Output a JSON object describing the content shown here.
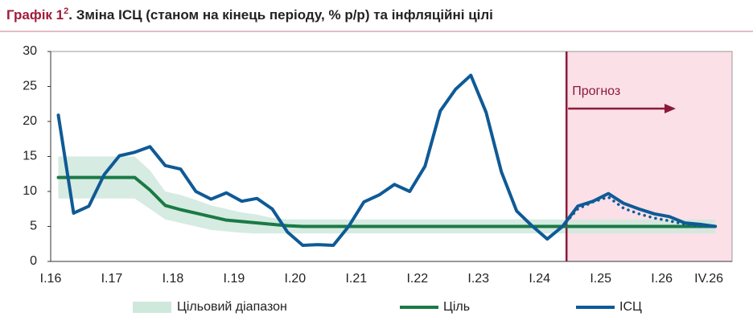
{
  "chart_data": {
    "type": "line",
    "title_label": "Графік 1",
    "title_footnote": "2",
    "title": ". Зміна ІСЦ (станом на кінець періоду, % р/р) та інфляційні цілі",
    "annotation": "Прогноз",
    "categories": [
      "I.16",
      null,
      null,
      null,
      "I.17",
      null,
      null,
      null,
      "I.18",
      null,
      null,
      null,
      "I.19",
      null,
      null,
      null,
      "I.20",
      null,
      null,
      null,
      "I.21",
      null,
      null,
      null,
      "I.22",
      null,
      null,
      null,
      "I.23",
      null,
      null,
      null,
      "I.24",
      null,
      null,
      null,
      "I.25",
      null,
      null,
      null,
      "I.26",
      null,
      null,
      "IV.26"
    ],
    "ylim": [
      0,
      30
    ],
    "yticks": [
      0,
      5,
      10,
      15,
      20,
      25,
      30
    ],
    "grid": false,
    "legend": "bottom",
    "band": {
      "name": "Цільовий діапазон",
      "color": "#cfe8dc",
      "upper": [
        15,
        15,
        15,
        15,
        15,
        15,
        13,
        10,
        9.5,
        8.8,
        8,
        7.5,
        7,
        6.7,
        6.2,
        6,
        6,
        6,
        6,
        6,
        6,
        6,
        6,
        6,
        6,
        6,
        6,
        6,
        6,
        6,
        6,
        6,
        6,
        6,
        6,
        6,
        6,
        6,
        6,
        6,
        6,
        6,
        6,
        6
      ],
      "lower": [
        9,
        9,
        9,
        9,
        9,
        9,
        7.5,
        6,
        5.5,
        5,
        4.5,
        4.3,
        4.1,
        4,
        4,
        4,
        4,
        4,
        4,
        4,
        4,
        4,
        4,
        4,
        4,
        4,
        4,
        4,
        4,
        4,
        4,
        4,
        4,
        4,
        4,
        4,
        4,
        4,
        4,
        4,
        4,
        4,
        4,
        4
      ]
    },
    "series": [
      {
        "name": "Ціль",
        "color": "#1a7a45",
        "style": "solid",
        "values": [
          12,
          12,
          12,
          12,
          12,
          12,
          10.2,
          8,
          7.4,
          6.9,
          6.4,
          5.9,
          5.7,
          5.5,
          5.3,
          5.1,
          5,
          5,
          5,
          5,
          5,
          5,
          5,
          5,
          5,
          5,
          5,
          5,
          5,
          5,
          5,
          5,
          5,
          5,
          5,
          5,
          5,
          5,
          5,
          5,
          5,
          5,
          5,
          5
        ]
      },
      {
        "name": "ІСЦ",
        "color": "#0f5a96",
        "style": "solid",
        "values": [
          20.9,
          6.9,
          7.9,
          12.4,
          15.1,
          15.6,
          16.4,
          13.7,
          13.2,
          10,
          8.9,
          9.8,
          8.6,
          9,
          7.5,
          4.2,
          2.3,
          2.4,
          2.3,
          5,
          8.5,
          9.5,
          11,
          10,
          13.6,
          21.5,
          24.6,
          26.6,
          21.3,
          12.8,
          7.2,
          5.1,
          3.2,
          5,
          7.9,
          8.6,
          9.7,
          8.3,
          7.5,
          6.8,
          6.4,
          5.5,
          5.3,
          5
        ]
      },
      {
        "color": "#0f5a96",
        "style": "dotted",
        "values": [
          null,
          null,
          null,
          null,
          null,
          null,
          null,
          null,
          null,
          null,
          null,
          null,
          null,
          null,
          null,
          null,
          null,
          null,
          null,
          null,
          null,
          null,
          null,
          null,
          null,
          null,
          null,
          null,
          null,
          null,
          null,
          null,
          null,
          5,
          7.5,
          8.5,
          9.2,
          7.6,
          6.8,
          6.2,
          5.8,
          5.3,
          5.1,
          5
        ]
      }
    ],
    "forecast_color": "#8b1a3a",
    "forecast_shade": "#fbe0e8"
  }
}
